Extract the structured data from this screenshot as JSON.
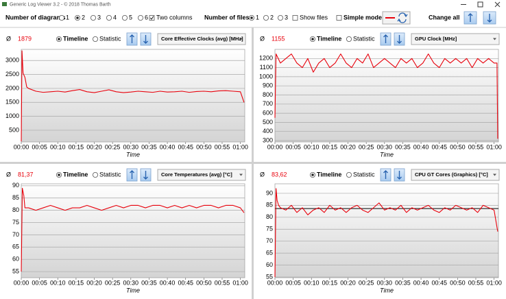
{
  "window": {
    "title": "Generic Log Viewer 3.2 - © 2018 Thomas Barth"
  },
  "toolbar": {
    "diagrams_label": "Number of diagrams",
    "diagram_options": [
      "1",
      "2",
      "3",
      "4",
      "5",
      "6"
    ],
    "diagrams_selected": 1,
    "two_columns_label": "Two columns",
    "two_columns": true,
    "files_label": "Number of files",
    "file_options": [
      "1",
      "2",
      "3"
    ],
    "files_selected": 0,
    "show_files_label": "Show files",
    "show_files": false,
    "simple_mode_label": "Simple mode",
    "simple_mode": false,
    "change_all_label": "Change all"
  },
  "chart_data": [
    {
      "type": "line",
      "avg_symbol": "Ø",
      "avg": 1879,
      "view_options": [
        "Timeline",
        "Statistic"
      ],
      "view_selected": 0,
      "x_label": "Time",
      "x": [
        0,
        0.2,
        0.5,
        1,
        1.5,
        2,
        4,
        6,
        8,
        10,
        12,
        14,
        16,
        18,
        20,
        22,
        24,
        26,
        28,
        30,
        32,
        34,
        36,
        38,
        40,
        42,
        44,
        46,
        48,
        50,
        52,
        54,
        56,
        58,
        60,
        61
      ],
      "series": [
        {
          "name": "Core Effective Clocks (avg) [MHz]",
          "color": "#e8000b",
          "values": [
            100,
            3350,
            2550,
            2400,
            2050,
            2000,
            1900,
            1860,
            1880,
            1900,
            1870,
            1920,
            1960,
            1880,
            1850,
            1900,
            1950,
            1880,
            1850,
            1870,
            1900,
            1880,
            1860,
            1900,
            1870,
            1880,
            1900,
            1860,
            1890,
            1900,
            1880,
            1910,
            1920,
            1900,
            1880,
            1500
          ]
        }
      ],
      "xlim": [
        0,
        61.2
      ],
      "xticks": [
        {
          "value": 0,
          "label": "00:00"
        },
        {
          "value": 5,
          "label": "00:05"
        },
        {
          "value": 10,
          "label": "00:10"
        },
        {
          "value": 15,
          "label": "00:15"
        },
        {
          "value": 20,
          "label": "00:20"
        },
        {
          "value": 25,
          "label": "00:25"
        },
        {
          "value": 30,
          "label": "00:30"
        },
        {
          "value": 35,
          "label": "00:35"
        },
        {
          "value": 40,
          "label": "00:40"
        },
        {
          "value": 45,
          "label": "00:45"
        },
        {
          "value": 50,
          "label": "00:50"
        },
        {
          "value": 55,
          "label": "00:55"
        },
        {
          "value": 60,
          "label": "01:00"
        }
      ],
      "ylim": [
        80,
        3400
      ],
      "yticks": [
        500,
        1000,
        1500,
        2000,
        2500,
        3000
      ],
      "grid": true,
      "avg_line": false
    },
    {
      "type": "line",
      "avg_symbol": "Ø",
      "avg": 1155,
      "view_options": [
        "Timeline",
        "Statistic"
      ],
      "view_selected": 0,
      "x_label": "Time",
      "x": [
        0,
        0.3,
        1.5,
        3,
        4.5,
        6,
        7.5,
        9,
        10.5,
        12,
        13.5,
        15,
        16.5,
        18,
        19.5,
        21,
        22.5,
        24,
        25.5,
        27,
        28.5,
        30,
        31.5,
        33,
        34.5,
        36,
        37.5,
        39,
        40.5,
        42,
        43.5,
        45,
        46.5,
        48,
        49.5,
        51,
        52.5,
        54,
        55.5,
        57,
        58.5,
        60,
        60.8,
        61
      ],
      "series": [
        {
          "name": "GPU Clock [MHz]",
          "color": "#e8000b",
          "values": [
            550,
            1250,
            1150,
            1200,
            1250,
            1150,
            1100,
            1200,
            1050,
            1150,
            1200,
            1100,
            1150,
            1250,
            1150,
            1100,
            1200,
            1150,
            1250,
            1100,
            1150,
            1200,
            1150,
            1100,
            1200,
            1150,
            1200,
            1100,
            1150,
            1250,
            1150,
            1100,
            1200,
            1150,
            1200,
            1150,
            1200,
            1100,
            1200,
            1150,
            1200,
            1150,
            1150,
            320
          ]
        }
      ],
      "xlim": [
        0,
        61.2
      ],
      "xticks": [
        {
          "value": 0,
          "label": "00:00"
        },
        {
          "value": 5,
          "label": "00:05"
        },
        {
          "value": 10,
          "label": "00:10"
        },
        {
          "value": 15,
          "label": "00:15"
        },
        {
          "value": 20,
          "label": "00:20"
        },
        {
          "value": 25,
          "label": "00:25"
        },
        {
          "value": 30,
          "label": "00:30"
        },
        {
          "value": 35,
          "label": "00:35"
        },
        {
          "value": 40,
          "label": "00:40"
        },
        {
          "value": 45,
          "label": "00:45"
        },
        {
          "value": 50,
          "label": "00:50"
        },
        {
          "value": 55,
          "label": "00:55"
        },
        {
          "value": 60,
          "label": "01:00"
        }
      ],
      "ylim": [
        285,
        1300
      ],
      "yticks": [
        300,
        400,
        500,
        600,
        700,
        800,
        900,
        1000,
        1100,
        1200
      ],
      "grid": true,
      "avg_line": false
    },
    {
      "type": "line",
      "avg_symbol": "Ø",
      "avg": {
        "value": 81.37,
        "label": "81,37"
      },
      "view_options": [
        "Timeline",
        "Statistic"
      ],
      "view_selected": 0,
      "x_label": "Time",
      "x": [
        0,
        0.3,
        0.7,
        1,
        2,
        4,
        6,
        8,
        10,
        12,
        14,
        16,
        18,
        20,
        22,
        24,
        26,
        28,
        30,
        32,
        34,
        36,
        38,
        40,
        42,
        44,
        46,
        48,
        50,
        52,
        54,
        56,
        58,
        60,
        61
      ],
      "series": [
        {
          "name": "Core Temperatures (avg) [°C]",
          "color": "#e8000b",
          "values": [
            55,
            89,
            86,
            81,
            81,
            80,
            81,
            82,
            81,
            80,
            81,
            81,
            82,
            81,
            80,
            81,
            82,
            81,
            82,
            82,
            81,
            82,
            82,
            81,
            82,
            81,
            82,
            81,
            82,
            82,
            81,
            82,
            82,
            81,
            79
          ]
        }
      ],
      "xlim": [
        0,
        61.2
      ],
      "xticks": [
        {
          "value": 0,
          "label": "00:00"
        },
        {
          "value": 5,
          "label": "00:05"
        },
        {
          "value": 10,
          "label": "00:10"
        },
        {
          "value": 15,
          "label": "00:15"
        },
        {
          "value": 20,
          "label": "00:20"
        },
        {
          "value": 25,
          "label": "00:25"
        },
        {
          "value": 30,
          "label": "00:30"
        },
        {
          "value": 35,
          "label": "00:35"
        },
        {
          "value": 40,
          "label": "00:40"
        },
        {
          "value": 45,
          "label": "00:45"
        },
        {
          "value": 50,
          "label": "00:50"
        },
        {
          "value": 55,
          "label": "00:55"
        },
        {
          "value": 60,
          "label": "01:00"
        }
      ],
      "ylim": [
        52.5,
        90.8
      ],
      "yticks": [
        55,
        60,
        65,
        70,
        75,
        80,
        85,
        90
      ],
      "grid": true,
      "avg_line": false
    },
    {
      "type": "line",
      "avg_symbol": "Ø",
      "avg": {
        "value": 83.62,
        "label": "83,62"
      },
      "view_options": [
        "Timeline",
        "Statistic"
      ],
      "view_selected": 0,
      "x_label": "Time",
      "x": [
        0,
        0.3,
        0.6,
        1,
        1.5,
        3,
        4.5,
        6,
        7.5,
        9,
        10.5,
        12,
        13.5,
        15,
        16.5,
        18,
        19.5,
        21,
        22.5,
        24,
        25.5,
        27,
        28.5,
        30,
        31.5,
        33,
        34.5,
        36,
        37.5,
        39,
        40.5,
        42,
        43.5,
        45,
        46.5,
        48,
        49.5,
        51,
        52.5,
        54,
        55.5,
        57,
        58.5,
        60,
        61
      ],
      "series": [
        {
          "name": "CPU GT Cores (Graphics) [°C]",
          "color": "#e8000b",
          "values": [
            55,
            92,
            87,
            85,
            84,
            83,
            85,
            82,
            84,
            81,
            83,
            84,
            82,
            85,
            83,
            84,
            82,
            84,
            85,
            83,
            82,
            84,
            86,
            83,
            84,
            83,
            85,
            82,
            84,
            83,
            84,
            85,
            83,
            82,
            84,
            83,
            85,
            84,
            83,
            84,
            82,
            85,
            84,
            83,
            74
          ]
        }
      ],
      "xlim": [
        0,
        61.2
      ],
      "xticks": [
        {
          "value": 0,
          "label": "00:00"
        },
        {
          "value": 5,
          "label": "00:05"
        },
        {
          "value": 10,
          "label": "00:10"
        },
        {
          "value": 15,
          "label": "00:15"
        },
        {
          "value": 20,
          "label": "00:20"
        },
        {
          "value": 25,
          "label": "00:25"
        },
        {
          "value": 30,
          "label": "00:30"
        },
        {
          "value": 35,
          "label": "00:35"
        },
        {
          "value": 40,
          "label": "00:40"
        },
        {
          "value": 45,
          "label": "00:45"
        },
        {
          "value": 50,
          "label": "00:50"
        },
        {
          "value": 55,
          "label": "00:55"
        },
        {
          "value": 60,
          "label": "01:00"
        }
      ],
      "ylim": [
        54.7,
        94
      ],
      "yticks": [
        55,
        60,
        65,
        70,
        75,
        80,
        85,
        90
      ],
      "grid": true,
      "avg_line": true
    }
  ]
}
